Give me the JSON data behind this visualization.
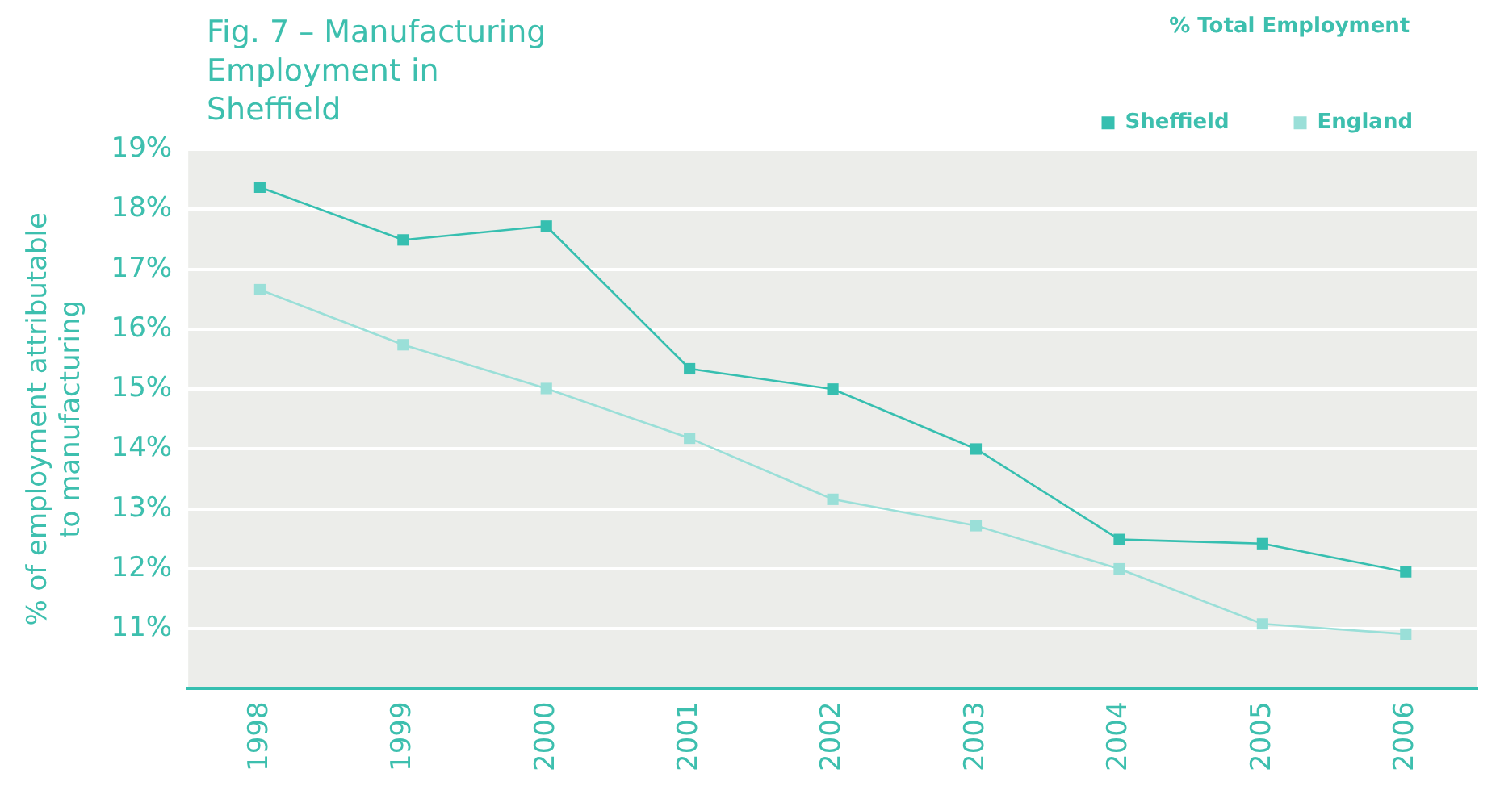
{
  "chart_data": {
    "type": "line",
    "title": "Fig. 7 – Manufacturing Employment in Sheffield",
    "legend_title": "% Total Employment",
    "ylabel": "% of employment attributable to manufacturing",
    "categories": [
      "1998",
      "1999",
      "2000",
      "2001",
      "2002",
      "2003",
      "2004",
      "2005",
      "2006"
    ],
    "series": [
      {
        "name": "Sheffield",
        "color": "#36bfb0",
        "values": [
          18.37,
          17.49,
          17.72,
          15.34,
          15.0,
          14.0,
          12.49,
          12.42,
          11.95
        ]
      },
      {
        "name": "England",
        "color": "#9adfd8",
        "values": [
          16.66,
          15.74,
          15.01,
          14.18,
          13.16,
          12.72,
          12.0,
          11.08,
          10.91
        ]
      }
    ],
    "ylim": [
      10,
      19
    ],
    "yticks": [
      {
        "value": 10,
        "label": null
      },
      {
        "value": 11,
        "label": "11%"
      },
      {
        "value": 12,
        "label": "12%"
      },
      {
        "value": 13,
        "label": "13%"
      },
      {
        "value": 14,
        "label": "14%"
      },
      {
        "value": 15,
        "label": "15%"
      },
      {
        "value": 16,
        "label": "16%"
      },
      {
        "value": 17,
        "label": "17%"
      },
      {
        "value": 18,
        "label": "18%"
      },
      {
        "value": 19,
        "label": "19%"
      }
    ],
    "grid": "y",
    "legend": "top right",
    "marker": "square",
    "line_style": "solid"
  }
}
